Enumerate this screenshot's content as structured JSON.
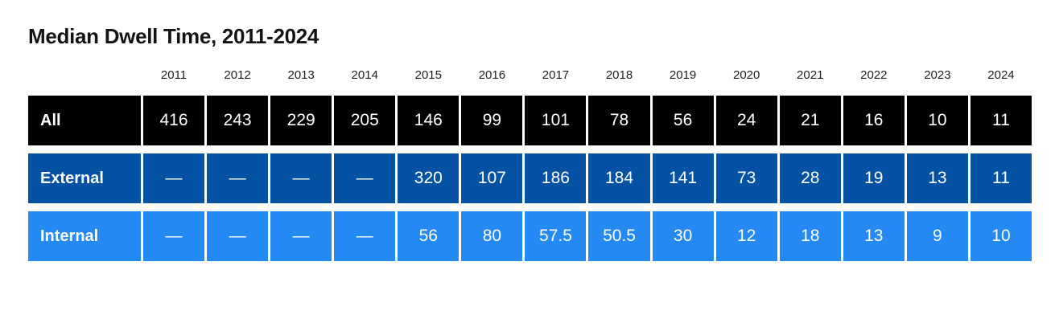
{
  "title": "Median Dwell Time, 2011-2024",
  "colors": {
    "background": "#ffffff",
    "title_text": "#131313",
    "year_text": "#202124",
    "cell_text": "#ffffff",
    "all_row": "#010101",
    "external_row": "#0552a5",
    "internal_row": "#2589f3"
  },
  "chart_data": {
    "type": "table",
    "title": "Median Dwell Time, 2011-2024",
    "columns": [
      "2011",
      "2012",
      "2013",
      "2014",
      "2015",
      "2016",
      "2017",
      "2018",
      "2019",
      "2020",
      "2021",
      "2022",
      "2023",
      "2024"
    ],
    "rows": [
      {
        "label": "All",
        "values": [
          "416",
          "243",
          "229",
          "205",
          "146",
          "99",
          "101",
          "78",
          "56",
          "24",
          "21",
          "16",
          "10",
          "11"
        ]
      },
      {
        "label": "External",
        "values": [
          "—",
          "—",
          "—",
          "—",
          "320",
          "107",
          "186",
          "184",
          "141",
          "73",
          "28",
          "19",
          "13",
          "11"
        ]
      },
      {
        "label": "Internal",
        "values": [
          "—",
          "—",
          "—",
          "—",
          "56",
          "80",
          "57.5",
          "50.5",
          "30",
          "12",
          "18",
          "13",
          "9",
          "10"
        ]
      }
    ],
    "layout": {
      "missing_value_glyph": "—",
      "header_position": "top",
      "grid": "white gaps between cells"
    }
  }
}
